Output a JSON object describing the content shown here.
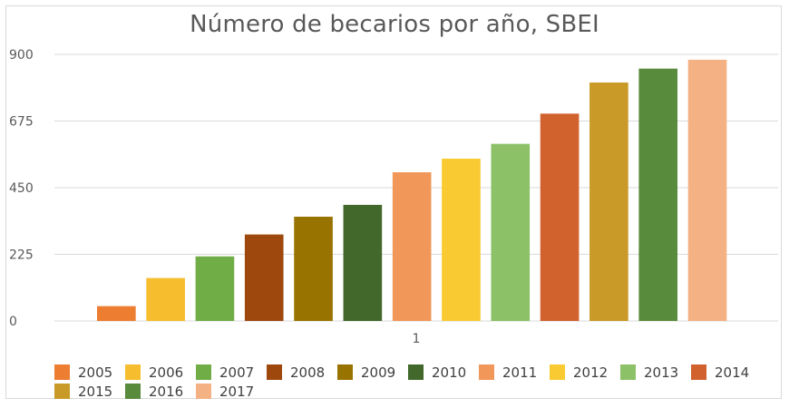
{
  "chart_data": {
    "type": "bar",
    "title": "Número de becarios por año, SBEI",
    "categories": [
      "1"
    ],
    "series": [
      {
        "name": "2005",
        "values": [
          50
        ],
        "color": "#ED7D31"
      },
      {
        "name": "2006",
        "values": [
          145
        ],
        "color": "#F6BD2E"
      },
      {
        "name": "2007",
        "values": [
          218
        ],
        "color": "#70AD47"
      },
      {
        "name": "2008",
        "values": [
          292
        ],
        "color": "#9E480E"
      },
      {
        "name": "2009",
        "values": [
          352
        ],
        "color": "#997300"
      },
      {
        "name": "2010",
        "values": [
          392
        ],
        "color": "#43682B"
      },
      {
        "name": "2011",
        "values": [
          502
        ],
        "color": "#F1975A"
      },
      {
        "name": "2012",
        "values": [
          548
        ],
        "color": "#F9CA31"
      },
      {
        "name": "2013",
        "values": [
          598
        ],
        "color": "#8CC168"
      },
      {
        "name": "2014",
        "values": [
          700
        ],
        "color": "#D2622D"
      },
      {
        "name": "2015",
        "values": [
          805
        ],
        "color": "#C99A27"
      },
      {
        "name": "2016",
        "values": [
          852
        ],
        "color": "#598B3C"
      },
      {
        "name": "2017",
        "values": [
          882
        ],
        "color": "#F4B183"
      }
    ],
    "y_ticks": [
      "0",
      "225",
      "450",
      "675",
      "900"
    ],
    "ylim": [
      0,
      900
    ],
    "xlabel": "",
    "ylabel": "",
    "grid": true,
    "legend_position": "bottom"
  }
}
